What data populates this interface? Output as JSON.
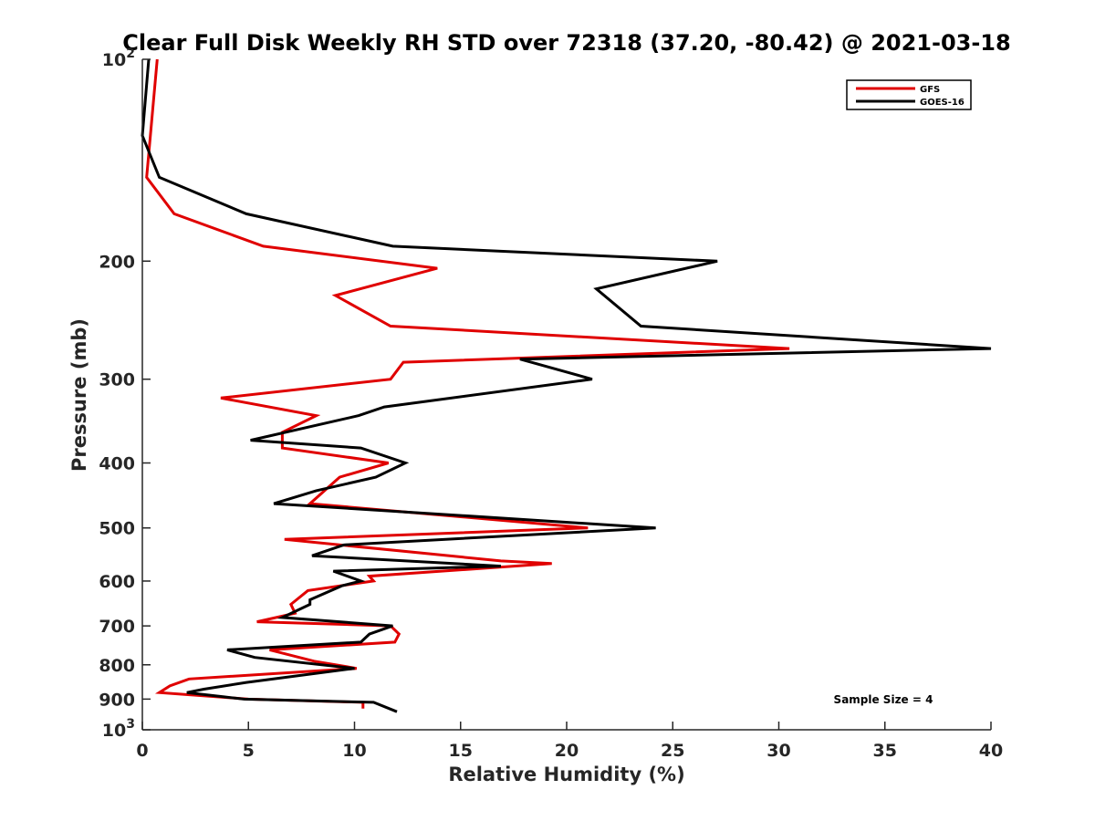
{
  "chart_data": {
    "type": "line",
    "title": "Clear Full Disk Weekly RH STD over 72318 (37.20, -80.42) @ 2021-03-18",
    "xlabel": "Relative Humidity (%)",
    "ylabel": "Pressure (mb)",
    "xlim": [
      0,
      40
    ],
    "ylim": [
      100,
      1000
    ],
    "y_scale": "log",
    "y_reversed": true,
    "grid": false,
    "x_ticks": [
      "0",
      "5",
      "10",
      "15",
      "20",
      "25",
      "30",
      "35",
      "40"
    ],
    "y_ticks": [
      {
        "value": 100,
        "base": "10",
        "exp": "2"
      },
      {
        "value": 200,
        "label": "200"
      },
      {
        "value": 300,
        "label": "300"
      },
      {
        "value": 400,
        "label": "400"
      },
      {
        "value": 500,
        "label": "500"
      },
      {
        "value": 600,
        "label": "600"
      },
      {
        "value": 700,
        "label": "700"
      },
      {
        "value": 800,
        "label": "800"
      },
      {
        "value": 900,
        "label": "900"
      },
      {
        "value": 1000,
        "base": "10",
        "exp": "3"
      }
    ],
    "legend_position": "top-right",
    "series": [
      {
        "name": "GFS",
        "color": "#e00000",
        "points": [
          [
            0.7,
            100
          ],
          [
            0.2,
            150
          ],
          [
            1.5,
            170
          ],
          [
            5.7,
            190
          ],
          [
            13.9,
            205
          ],
          [
            9.1,
            225
          ],
          [
            11.7,
            250
          ],
          [
            30.5,
            270
          ],
          [
            12.3,
            283
          ],
          [
            11.7,
            300
          ],
          [
            3.7,
            320
          ],
          [
            8.2,
            340
          ],
          [
            6.6,
            360
          ],
          [
            6.6,
            380
          ],
          [
            11.6,
            400
          ],
          [
            9.3,
            420
          ],
          [
            7.9,
            460
          ],
          [
            21.0,
            500
          ],
          [
            6.7,
            520
          ],
          [
            16.9,
            560
          ],
          [
            19.3,
            565
          ],
          [
            10.7,
            590
          ],
          [
            10.9,
            600
          ],
          [
            7.8,
            620
          ],
          [
            7.0,
            650
          ],
          [
            7.2,
            670
          ],
          [
            5.4,
            690
          ],
          [
            11.7,
            700
          ],
          [
            12.1,
            720
          ],
          [
            11.9,
            740
          ],
          [
            6.0,
            760
          ],
          [
            8.1,
            790
          ],
          [
            10.1,
            810
          ],
          [
            2.2,
            840
          ],
          [
            1.3,
            860
          ],
          [
            0.8,
            880
          ],
          [
            5.0,
            900
          ],
          [
            10.4,
            910
          ],
          [
            10.4,
            930
          ]
        ]
      },
      {
        "name": "GOES-16",
        "color": "#000000",
        "points": [
          [
            0.3,
            100
          ],
          [
            0.0,
            130
          ],
          [
            0.8,
            150
          ],
          [
            4.9,
            170
          ],
          [
            11.8,
            190
          ],
          [
            27.1,
            200
          ],
          [
            21.4,
            220
          ],
          [
            23.5,
            250
          ],
          [
            40.0,
            270
          ],
          [
            17.8,
            280
          ],
          [
            21.2,
            300
          ],
          [
            11.4,
            330
          ],
          [
            10.2,
            340
          ],
          [
            5.1,
            370
          ],
          [
            10.3,
            380
          ],
          [
            12.4,
            400
          ],
          [
            11.0,
            420
          ],
          [
            8.2,
            440
          ],
          [
            6.2,
            460
          ],
          [
            24.2,
            500
          ],
          [
            9.5,
            530
          ],
          [
            8.0,
            550
          ],
          [
            16.9,
            570
          ],
          [
            9.0,
            580
          ],
          [
            10.3,
            600
          ],
          [
            9.4,
            610
          ],
          [
            7.9,
            640
          ],
          [
            7.9,
            650
          ],
          [
            6.6,
            680
          ],
          [
            11.8,
            700
          ],
          [
            10.7,
            720
          ],
          [
            10.3,
            740
          ],
          [
            4.0,
            760
          ],
          [
            5.3,
            780
          ],
          [
            10.0,
            810
          ],
          [
            4.9,
            850
          ],
          [
            2.9,
            870
          ],
          [
            2.1,
            880
          ],
          [
            4.8,
            900
          ],
          [
            10.9,
            910
          ],
          [
            12.0,
            940
          ]
        ]
      }
    ],
    "annotations": [
      "Sample Size = 4"
    ]
  }
}
